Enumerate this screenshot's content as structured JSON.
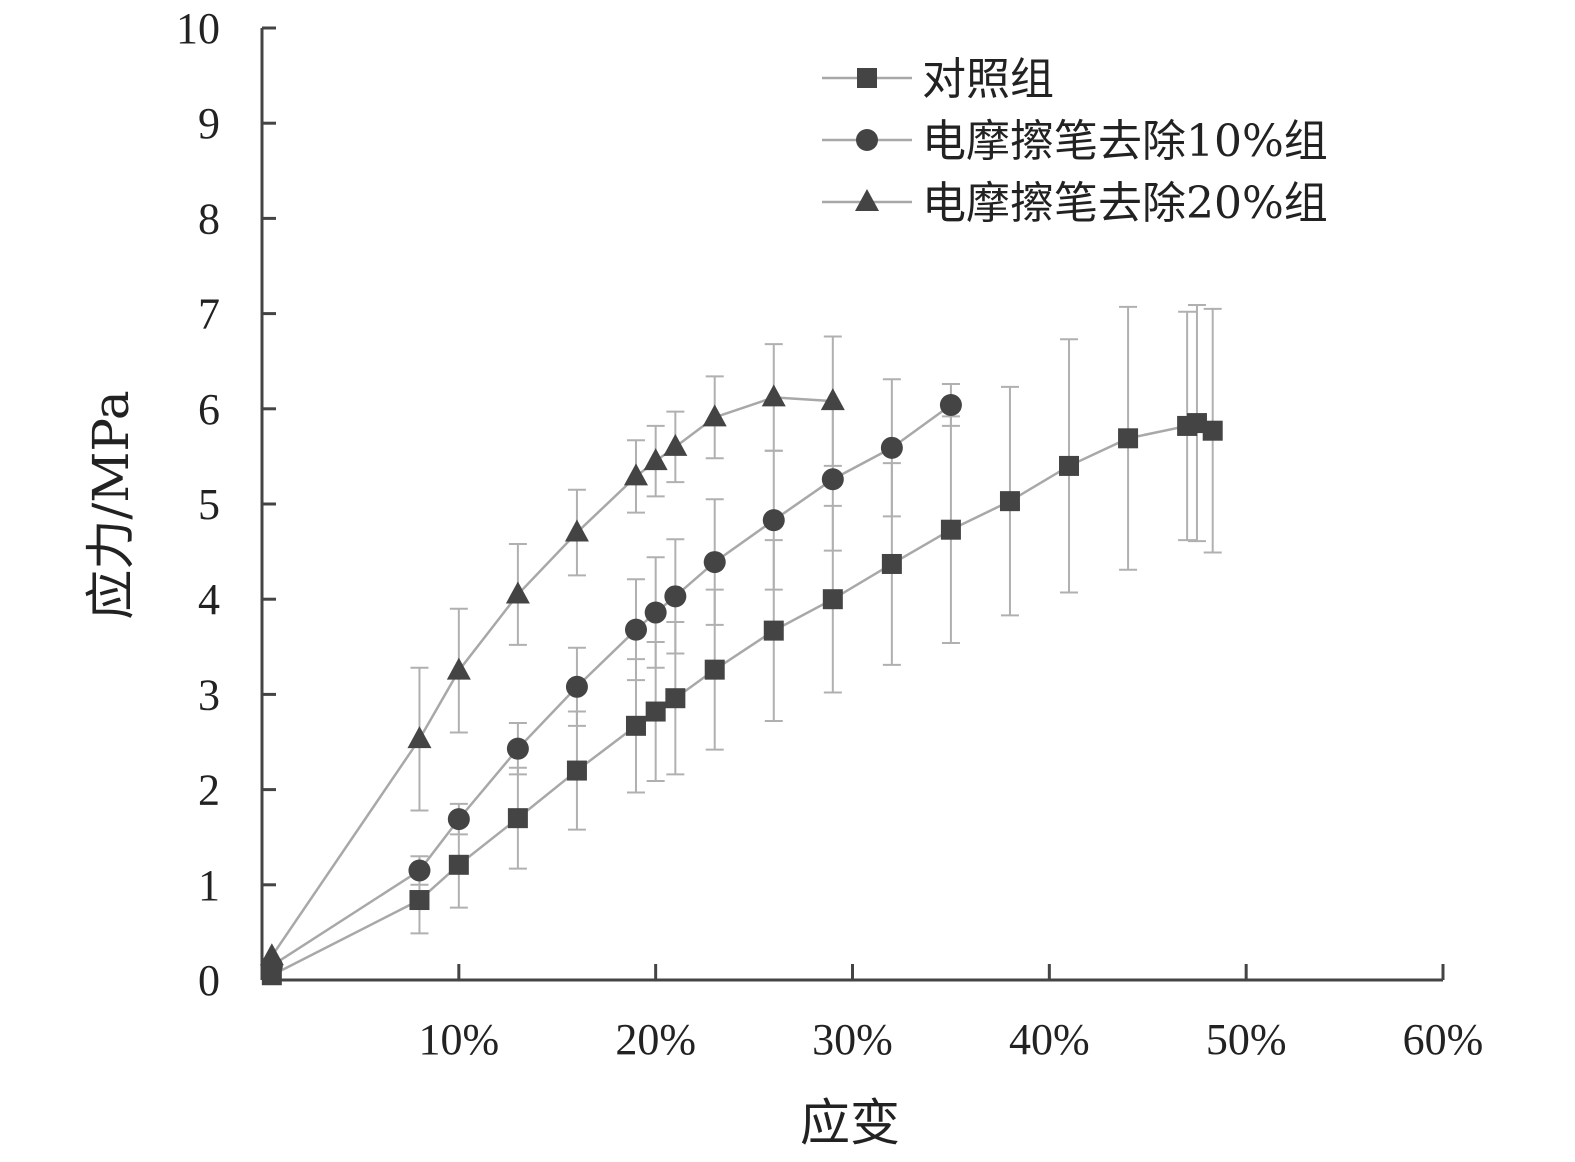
{
  "chart_data": {
    "type": "line",
    "xlabel": "应变",
    "ylabel": "应力/MPa",
    "xlim": [
      0,
      60
    ],
    "ylim": [
      0,
      10
    ],
    "x_ticks": [
      10,
      20,
      30,
      40,
      50,
      60
    ],
    "x_tick_labels": [
      "10%",
      "20%",
      "30%",
      "40%",
      "50%",
      "60%"
    ],
    "y_ticks": [
      0,
      1,
      2,
      3,
      4,
      5,
      6,
      7,
      8,
      9,
      10
    ],
    "y_tick_labels": [
      "0",
      "1",
      "2",
      "3",
      "4",
      "5",
      "6",
      "7",
      "8",
      "9",
      "10"
    ],
    "grid": false,
    "legend_position": "top-right",
    "series": [
      {
        "name": "对照组",
        "marker": "square",
        "color": "#444444",
        "line_color": "#a8a8a8",
        "x": [
          0.5,
          8,
          10,
          13,
          16,
          19,
          20,
          21,
          23,
          26,
          29,
          32,
          35,
          38,
          41,
          44,
          47,
          47.5,
          48.3
        ],
        "y": [
          0.05,
          0.84,
          1.21,
          1.7,
          2.2,
          2.67,
          2.82,
          2.96,
          3.26,
          3.67,
          4.0,
          4.37,
          4.73,
          5.03,
          5.4,
          5.69,
          5.82,
          5.85,
          5.77
        ],
        "error": [
          0,
          0.35,
          0.45,
          0.53,
          0.62,
          0.7,
          0.73,
          0.8,
          0.84,
          0.95,
          0.98,
          1.06,
          1.19,
          1.2,
          1.33,
          1.38,
          1.2,
          1.24,
          1.28
        ]
      },
      {
        "name": "电摩擦笔去除10%组",
        "marker": "circle",
        "color": "#444444",
        "line_color": "#a8a8a8",
        "x": [
          0.5,
          8,
          10,
          13,
          16,
          19,
          20,
          21,
          23,
          26,
          29,
          32,
          35
        ],
        "y": [
          0.15,
          1.15,
          1.69,
          2.43,
          3.08,
          3.68,
          3.86,
          4.03,
          4.39,
          4.83,
          5.26,
          5.59,
          6.04
        ],
        "error": [
          0,
          0.15,
          0.16,
          0.27,
          0.41,
          0.53,
          0.58,
          0.6,
          0.66,
          0.73,
          0.75,
          0.72,
          0.22
        ]
      },
      {
        "name": "电摩擦笔去除20%组",
        "marker": "triangle",
        "color": "#444444",
        "line_color": "#a8a8a8",
        "x": [
          0.5,
          8,
          10,
          13,
          16,
          19,
          20,
          21,
          23,
          26,
          29
        ],
        "y": [
          0.25,
          2.53,
          3.25,
          4.05,
          4.7,
          5.29,
          5.45,
          5.6,
          5.91,
          6.12,
          6.08
        ],
        "error": [
          0,
          0.75,
          0.65,
          0.53,
          0.45,
          0.38,
          0.37,
          0.37,
          0.43,
          0.56,
          0.68
        ]
      }
    ]
  }
}
